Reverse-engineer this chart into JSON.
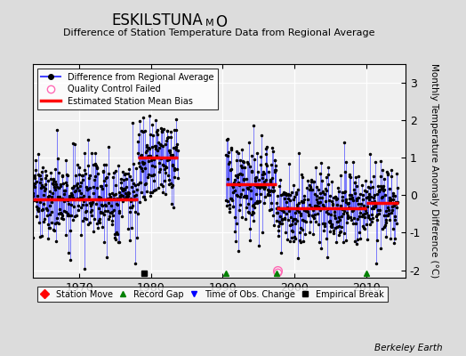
{
  "title_main": "ESKILSTUNA",
  "title_sub": "M",
  "title_end": "O",
  "subtitle": "Difference of Station Temperature Data from Regional Average",
  "ylabel": "Monthly Temperature Anomaly Difference (°C)",
  "xlim": [
    1963.5,
    2015.5
  ],
  "ylim": [
    -2.2,
    3.5
  ],
  "yticks": [
    -2,
    -1,
    0,
    1,
    2,
    3
  ],
  "xticks": [
    1970,
    1980,
    1990,
    2000,
    2010
  ],
  "background_color": "#dcdcdc",
  "plot_bg_color": "#f0f0f0",
  "grid_color": "#ffffff",
  "data_line_color": "#4444ff",
  "data_dot_color": "#000000",
  "bias_color": "#ff0000",
  "watermark": "Berkeley Earth",
  "segments": [
    {
      "start": 1963.5,
      "end": 1978.2,
      "bias": -0.1,
      "noise": 0.55
    },
    {
      "start": 1978.2,
      "end": 1983.8,
      "bias": 1.0,
      "noise": 0.55
    },
    {
      "start": 1990.5,
      "end": 1997.5,
      "bias": 0.3,
      "noise": 0.6
    },
    {
      "start": 1997.5,
      "end": 2010.0,
      "bias": -0.35,
      "noise": 0.55
    },
    {
      "start": 2010.0,
      "end": 2014.5,
      "bias": -0.2,
      "noise": 0.5
    }
  ],
  "record_gaps": [
    1990.5,
    1997.5,
    2010.0
  ],
  "empirical_breaks": [
    1979.0
  ],
  "qc_failed": [
    1997.7
  ],
  "seed": 17
}
